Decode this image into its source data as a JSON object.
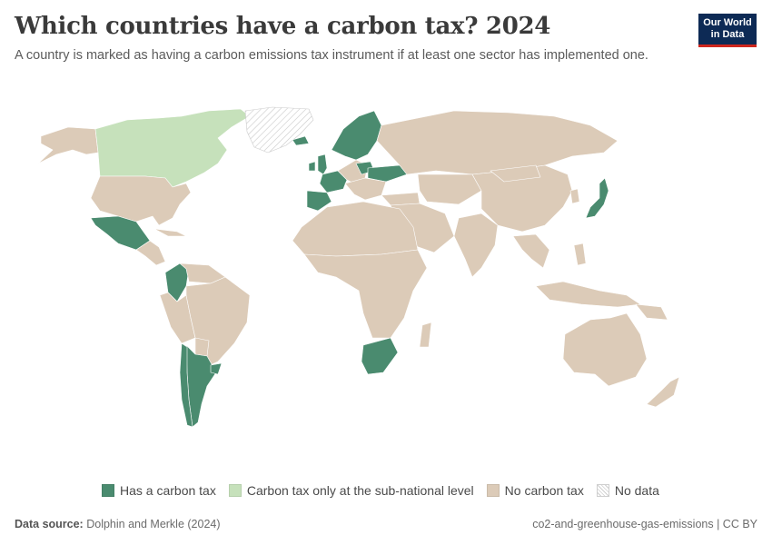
{
  "header": {
    "title": "Which countries have a carbon tax? 2024",
    "subtitle": "A country is marked as having a carbon emissions tax instrument if at least one sector has implemented one."
  },
  "logo": {
    "line1": "Our World",
    "line2": "in Data",
    "bg_color": "#0d2a55",
    "accent_color": "#ce261e"
  },
  "legend": {
    "items": [
      {
        "label": "Has a carbon tax",
        "color": "#4a8b6f"
      },
      {
        "label": "Carbon tax only at the sub-national level",
        "color": "#c6e1bb"
      },
      {
        "label": "No carbon tax",
        "color": "#dccbb8"
      },
      {
        "label": "No data",
        "color": "hatched"
      }
    ]
  },
  "regions": [
    {
      "name": "Canada",
      "category": "Carbon tax only at the sub-national level"
    },
    {
      "name": "Greenland",
      "category": "No data"
    },
    {
      "name": "United States",
      "category": "No carbon tax"
    },
    {
      "name": "Mexico",
      "category": "Has a carbon tax"
    },
    {
      "name": "Colombia",
      "category": "Has a carbon tax"
    },
    {
      "name": "Argentina",
      "category": "Has a carbon tax"
    },
    {
      "name": "Chile",
      "category": "Has a carbon tax"
    },
    {
      "name": "Uruguay",
      "category": "Has a carbon tax"
    },
    {
      "name": "South Africa",
      "category": "Has a carbon tax"
    },
    {
      "name": "Japan",
      "category": "Has a carbon tax"
    },
    {
      "name": "Ukraine",
      "category": "Has a carbon tax"
    },
    {
      "name": "United Kingdom",
      "category": "Has a carbon tax"
    },
    {
      "name": "Ireland",
      "category": "Has a carbon tax"
    },
    {
      "name": "Iceland",
      "category": "Has a carbon tax"
    },
    {
      "name": "Norway",
      "category": "Has a carbon tax"
    },
    {
      "name": "Sweden",
      "category": "Has a carbon tax"
    },
    {
      "name": "Finland",
      "category": "Has a carbon tax"
    },
    {
      "name": "France",
      "category": "Has a carbon tax"
    },
    {
      "name": "Spain",
      "category": "Has a carbon tax"
    },
    {
      "name": "Portugal",
      "category": "Has a carbon tax"
    },
    {
      "name": "Poland",
      "category": "Has a carbon tax"
    },
    {
      "name": "Australia",
      "category": "No carbon tax"
    },
    {
      "name": "Brazil",
      "category": "No carbon tax"
    },
    {
      "name": "Russia",
      "category": "No carbon tax"
    },
    {
      "name": "China",
      "category": "No carbon tax"
    },
    {
      "name": "India",
      "category": "No carbon tax"
    }
  ],
  "footer": {
    "source_label": "Data source:",
    "source_value": "Dolphin and Merkle (2024)",
    "right_text": "co2-and-greenhouse-gas-emissions | CC BY"
  }
}
